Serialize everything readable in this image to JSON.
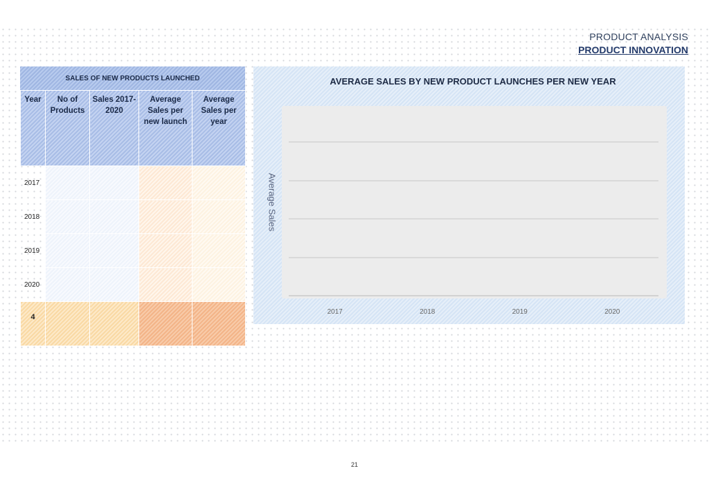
{
  "header": {
    "section": "PRODUCT ANALYSIS",
    "subsection": "PRODUCT INNOVATION"
  },
  "table": {
    "title": "SALES OF NEW PRODUCTS LAUNCHED",
    "columns": {
      "year": "Year",
      "products": "No of Products",
      "sales": "Sales 2017-2020",
      "avg_launch": "Average Sales per new launch",
      "avg_year": "Average Sales per year"
    },
    "rows": [
      {
        "year": "2017"
      },
      {
        "year": "2018"
      },
      {
        "year": "2019"
      },
      {
        "year": "2020"
      }
    ],
    "total_label": "4"
  },
  "chart_data": {
    "type": "bar",
    "title": "AVERAGE SALES BY NEW PRODUCT LAUNCHES PER NEW YEAR",
    "xlabel": "",
    "ylabel": "Average Sales",
    "categories": [
      "2017",
      "2018",
      "2019",
      "2020"
    ],
    "series": [],
    "grid": true,
    "gridline_count": 5
  },
  "colors": {
    "header_blue": "#243b6b",
    "table_header": "#a8bde6",
    "chart_panel": "#dfeaf7",
    "plot_area": "#ececec",
    "total_yellow": "#f9d9a4",
    "total_orange": "#f3b488"
  },
  "footer": {
    "page_number": "21"
  }
}
